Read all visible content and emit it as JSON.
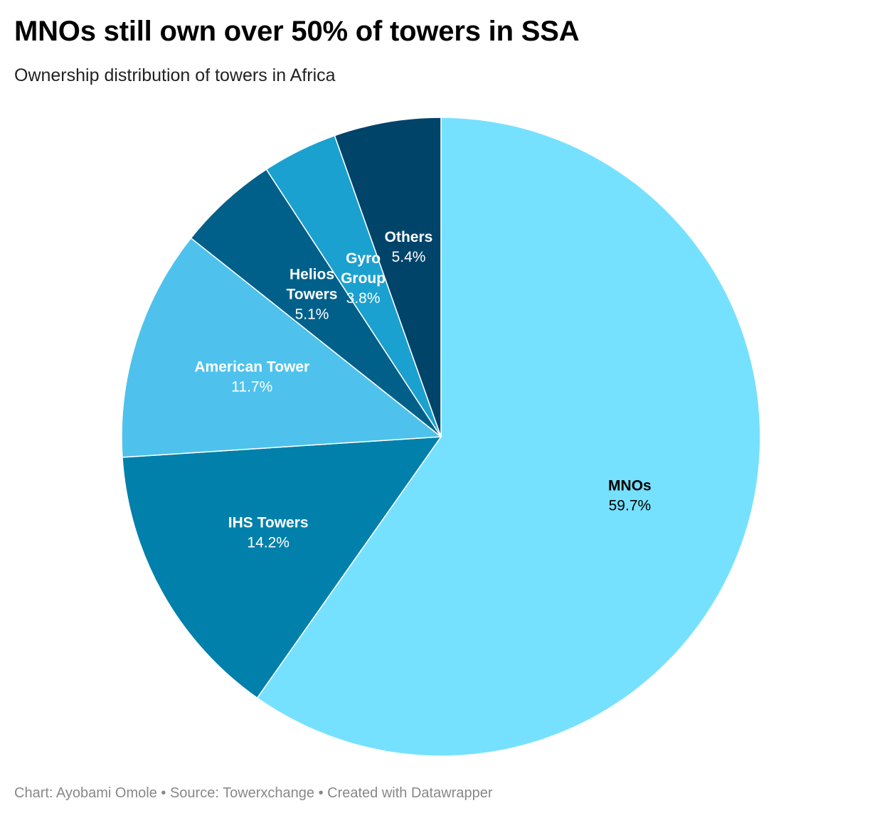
{
  "title": "MNOs still own over 50% of towers in SSA",
  "subtitle": "Ownership distribution of towers in Africa",
  "footer": "Chart: Ayobami Omole • Source: Towerxchange • Created with Datawrapper",
  "chart_data": {
    "type": "pie",
    "title": "MNOs still own over 50% of towers in SSA",
    "subtitle": "Ownership distribution of towers in Africa",
    "unit": "%",
    "slices": [
      {
        "label": "MNOs",
        "label_lines": [
          "MNOs"
        ],
        "value": 59.7,
        "display": "59.7%",
        "color": "#76e1fe",
        "text_color": "#000000"
      },
      {
        "label": "IHS Towers",
        "label_lines": [
          "IHS Towers"
        ],
        "value": 14.2,
        "display": "14.2%",
        "color": "#0080ab",
        "text_color": "#ffffff"
      },
      {
        "label": "American Tower",
        "label_lines": [
          "American Tower"
        ],
        "value": 11.7,
        "display": "11.7%",
        "color": "#4ec2ed",
        "text_color": "#ffffff"
      },
      {
        "label": "Helios Towers",
        "label_lines": [
          "Helios",
          "Towers"
        ],
        "value": 5.1,
        "display": "5.1%",
        "color": "#00608a",
        "text_color": "#ffffff"
      },
      {
        "label": "Gyro Group",
        "label_lines": [
          "Gyro",
          "Group"
        ],
        "value": 3.8,
        "display": "3.8%",
        "color": "#1ba1cf",
        "text_color": "#ffffff"
      },
      {
        "label": "Others",
        "label_lines": [
          "Others"
        ],
        "value": 5.4,
        "display": "5.4%",
        "color": "#00446a",
        "text_color": "#ffffff"
      }
    ],
    "start": "12 o'clock",
    "direction": "clockwise",
    "legend": "none (labels inside slices)"
  }
}
